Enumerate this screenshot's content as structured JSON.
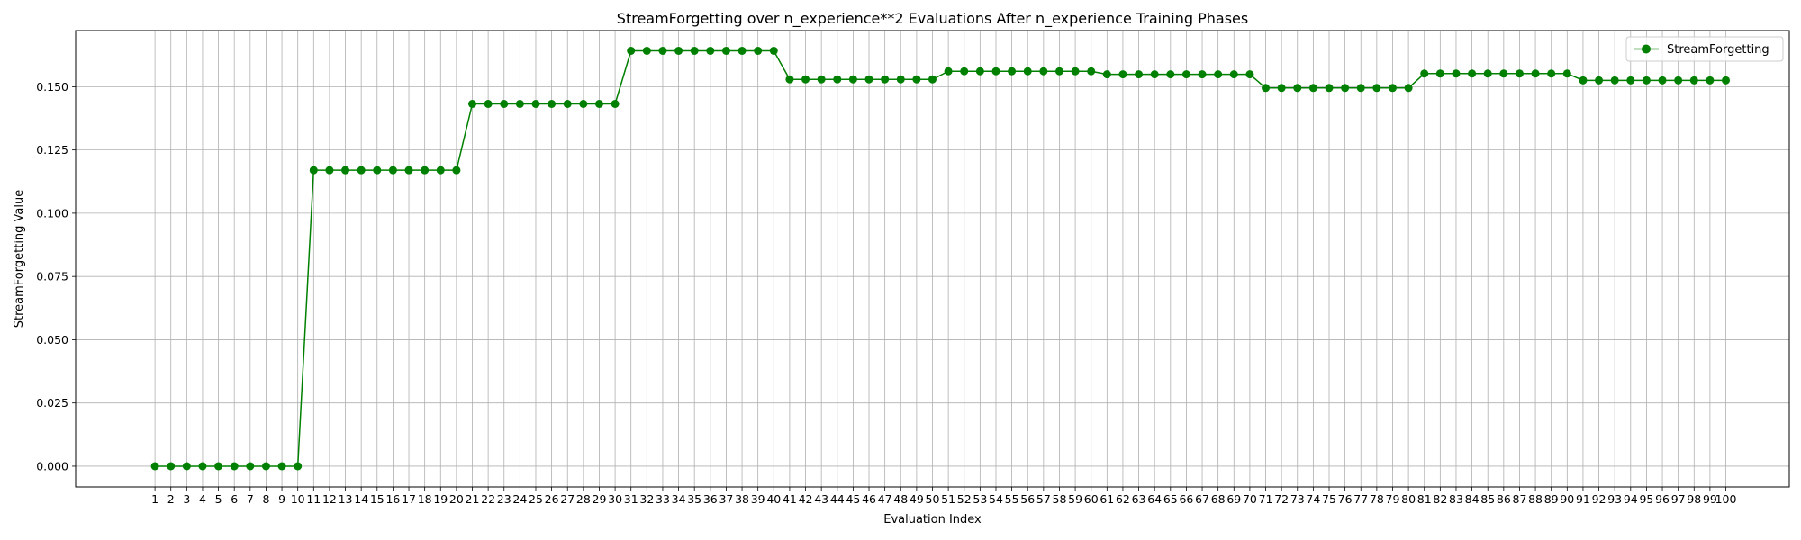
{
  "chart_data": {
    "type": "line",
    "title": "StreamForgetting over n_experience**2 Evaluations After n_experience Training Phases",
    "xlabel": "Evaluation Index",
    "ylabel": "StreamForgetting Value",
    "xlim": [
      -4,
      104
    ],
    "ylim": [
      -0.0082,
      0.1722
    ],
    "x_ticks": [
      1,
      2,
      3,
      4,
      5,
      6,
      7,
      8,
      9,
      10,
      11,
      12,
      13,
      14,
      15,
      16,
      17,
      18,
      19,
      20,
      21,
      22,
      23,
      24,
      25,
      26,
      27,
      28,
      29,
      30,
      31,
      32,
      33,
      34,
      35,
      36,
      37,
      38,
      39,
      40,
      41,
      42,
      43,
      44,
      45,
      46,
      47,
      48,
      49,
      50,
      51,
      52,
      53,
      54,
      55,
      56,
      57,
      58,
      59,
      60,
      61,
      62,
      63,
      64,
      65,
      66,
      67,
      68,
      69,
      70,
      71,
      72,
      73,
      74,
      75,
      76,
      77,
      78,
      79,
      80,
      81,
      82,
      83,
      84,
      85,
      86,
      87,
      88,
      89,
      90,
      91,
      92,
      93,
      94,
      95,
      96,
      97,
      98,
      99,
      100
    ],
    "y_ticks": [
      0.0,
      0.025,
      0.05,
      0.075,
      0.1,
      0.125,
      0.15
    ],
    "y_tick_labels": [
      "0.000",
      "0.025",
      "0.050",
      "0.075",
      "0.100",
      "0.125",
      "0.150"
    ],
    "grid": true,
    "legend_position": "top-right",
    "series": [
      {
        "name": "StreamForgetting",
        "color": "#008000",
        "marker": "circle",
        "values": [
          0,
          0,
          0,
          0,
          0,
          0,
          0,
          0,
          0,
          0,
          0.117,
          0.117,
          0.117,
          0.117,
          0.117,
          0.117,
          0.117,
          0.117,
          0.117,
          0.117,
          0.1432,
          0.1432,
          0.1432,
          0.1432,
          0.1432,
          0.1432,
          0.1432,
          0.1432,
          0.1432,
          0.1432,
          0.1642,
          0.1642,
          0.1642,
          0.1642,
          0.1642,
          0.1642,
          0.1642,
          0.1642,
          0.1642,
          0.1642,
          0.1529,
          0.1529,
          0.1529,
          0.1529,
          0.1529,
          0.1529,
          0.1529,
          0.1529,
          0.1529,
          0.1529,
          0.1561,
          0.1561,
          0.1561,
          0.1561,
          0.1561,
          0.1561,
          0.1561,
          0.1561,
          0.1561,
          0.1561,
          0.1549,
          0.1549,
          0.1549,
          0.1549,
          0.1549,
          0.1549,
          0.1549,
          0.1549,
          0.1549,
          0.1549,
          0.1495,
          0.1495,
          0.1495,
          0.1495,
          0.1495,
          0.1495,
          0.1495,
          0.1495,
          0.1495,
          0.1495,
          0.1552,
          0.1552,
          0.1552,
          0.1552,
          0.1552,
          0.1552,
          0.1552,
          0.1552,
          0.1552,
          0.1552,
          0.1525,
          0.1525,
          0.1525,
          0.1525,
          0.1525,
          0.1525,
          0.1525,
          0.1525,
          0.1525,
          0.1525
        ]
      }
    ]
  }
}
